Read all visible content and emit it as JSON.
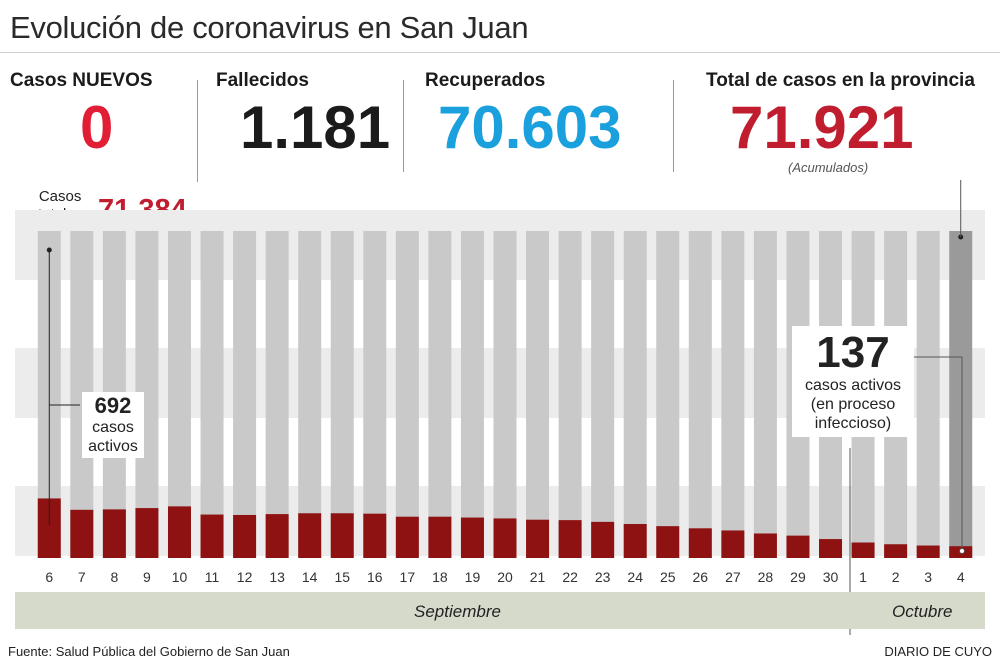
{
  "title": "Evolución de coronavirus en San Juan",
  "stats": {
    "nuevos": {
      "label": "Casos NUEVOS",
      "value": "0",
      "color": "#e21d36"
    },
    "fallecidos": {
      "label": "Fallecidos",
      "value": "1.181",
      "color": "#1b1b1b"
    },
    "recuperados": {
      "label": "Recuperados",
      "value": "70.603",
      "color": "#1aa0dc"
    },
    "total": {
      "label": "Total de casos en la provincia",
      "value": "71.921",
      "color": "#c01d2f",
      "note": "(Acumulados)"
    }
  },
  "casos_totales": {
    "label_line1": "Casos",
    "label_line2": "totales",
    "value": "71.384"
  },
  "annotations": {
    "start": {
      "number": "692",
      "line1": "casos",
      "line2": "activos"
    },
    "end": {
      "number": "137",
      "line1": "casos activos",
      "line2": "(en proceso",
      "line3": "infeccioso)"
    }
  },
  "months": {
    "september": "Septiembre",
    "october": "Octubre"
  },
  "footer": {
    "source": "Fuente: Salud Pública del Gobierno de San Juan",
    "brand": "DIARIO DE CUYO"
  },
  "colors": {
    "bar_total": "#c9c9c9",
    "bar_total_last": "#9a9a9a",
    "bar_active": "#8e1212",
    "band": "#ececec"
  },
  "chart_data": {
    "type": "bar",
    "stacked": true,
    "categories": [
      "6",
      "7",
      "8",
      "9",
      "10",
      "11",
      "12",
      "13",
      "14",
      "15",
      "16",
      "17",
      "18",
      "19",
      "20",
      "21",
      "22",
      "23",
      "24",
      "25",
      "26",
      "27",
      "28",
      "29",
      "30",
      "1",
      "2",
      "3",
      "4"
    ],
    "series": [
      {
        "name": "casos activos",
        "values": [
          692,
          560,
          565,
          580,
          600,
          505,
          500,
          510,
          520,
          520,
          515,
          480,
          480,
          470,
          460,
          445,
          440,
          420,
          395,
          370,
          345,
          320,
          285,
          260,
          220,
          180,
          160,
          145,
          137
        ]
      },
      {
        "name": "casos totales",
        "values": [
          71384,
          71421,
          71461,
          71501,
          71541,
          71580,
          71618,
          71655,
          71692,
          71728,
          71763,
          71797,
          71830,
          71861,
          71891,
          71918,
          71920,
          71920,
          71921,
          71921,
          71921,
          71921,
          71921,
          71921,
          71921,
          71921,
          71921,
          71921,
          71921
        ]
      }
    ],
    "xlabel": "",
    "ylabel": "",
    "grid": false
  }
}
